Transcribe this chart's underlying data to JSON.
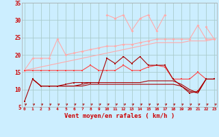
{
  "x": [
    0,
    1,
    2,
    3,
    4,
    5,
    6,
    7,
    8,
    9,
    10,
    11,
    12,
    13,
    14,
    15,
    16,
    17,
    18,
    19,
    20,
    21,
    22,
    23
  ],
  "rafales_upper": [
    null,
    null,
    null,
    null,
    null,
    null,
    null,
    null,
    null,
    null,
    31.5,
    30.5,
    31.5,
    27.0,
    30.5,
    31.5,
    27.0,
    31.5,
    null,
    null,
    null,
    null,
    28.0,
    24.5
  ],
  "rafales_mid": [
    15.5,
    19.0,
    19.0,
    19.0,
    24.5,
    20.0,
    20.5,
    21.0,
    21.5,
    22.0,
    22.5,
    22.5,
    23.0,
    23.0,
    23.5,
    24.0,
    24.5,
    24.5,
    24.5,
    24.5,
    24.5,
    28.5,
    24.5,
    24.5
  ],
  "trend_line": [
    15.5,
    16.0,
    16.5,
    17.0,
    17.5,
    18.0,
    18.5,
    19.0,
    19.5,
    20.0,
    20.5,
    21.0,
    21.5,
    22.0,
    22.5,
    23.0,
    23.5,
    23.5,
    23.5,
    23.5,
    24.0,
    24.0,
    24.0,
    24.5
  ],
  "moyen_upper": [
    15.5,
    15.5,
    15.5,
    15.5,
    15.5,
    15.5,
    15.5,
    15.5,
    17.0,
    15.5,
    15.5,
    15.5,
    17.0,
    15.5,
    15.5,
    16.5,
    17.0,
    16.5,
    13.0,
    13.0,
    13.0,
    15.0,
    13.0,
    13.0
  ],
  "moyen_mid": [
    6.5,
    13.0,
    11.0,
    11.0,
    11.0,
    11.5,
    12.0,
    12.0,
    12.0,
    12.0,
    19.0,
    17.5,
    19.5,
    17.5,
    19.5,
    17.0,
    17.0,
    17.0,
    13.0,
    11.0,
    9.0,
    9.5,
    13.0,
    13.0
  ],
  "moyen_lower1": [
    null,
    13.0,
    11.0,
    11.0,
    11.0,
    11.0,
    11.0,
    11.5,
    12.0,
    12.0,
    12.0,
    12.0,
    12.0,
    12.0,
    12.0,
    12.5,
    12.5,
    12.5,
    12.5,
    11.5,
    10.0,
    9.0,
    13.0,
    13.0
  ],
  "moyen_lower2": [
    null,
    13.0,
    11.0,
    11.0,
    11.0,
    11.0,
    11.0,
    11.0,
    11.5,
    11.5,
    11.5,
    11.5,
    11.5,
    11.5,
    11.5,
    11.5,
    11.5,
    11.5,
    11.5,
    11.0,
    9.5,
    9.0,
    13.0,
    13.0
  ],
  "bg_color": "#cceeff",
  "grid_color": "#aacccc",
  "color_light": "#ffaaaa",
  "color_mid": "#ff4444",
  "color_dark": "#aa0000",
  "xlabel": "Vent moyen/en rafales ( km/h )",
  "ylim_min": 5,
  "ylim_max": 35,
  "ytick_labels": [
    "5",
    "10",
    "15",
    "20",
    "25",
    "30",
    "35"
  ],
  "ytick_vals": [
    5,
    10,
    15,
    20,
    25,
    30,
    35
  ],
  "xlim_min": 0,
  "xlim_max": 23
}
